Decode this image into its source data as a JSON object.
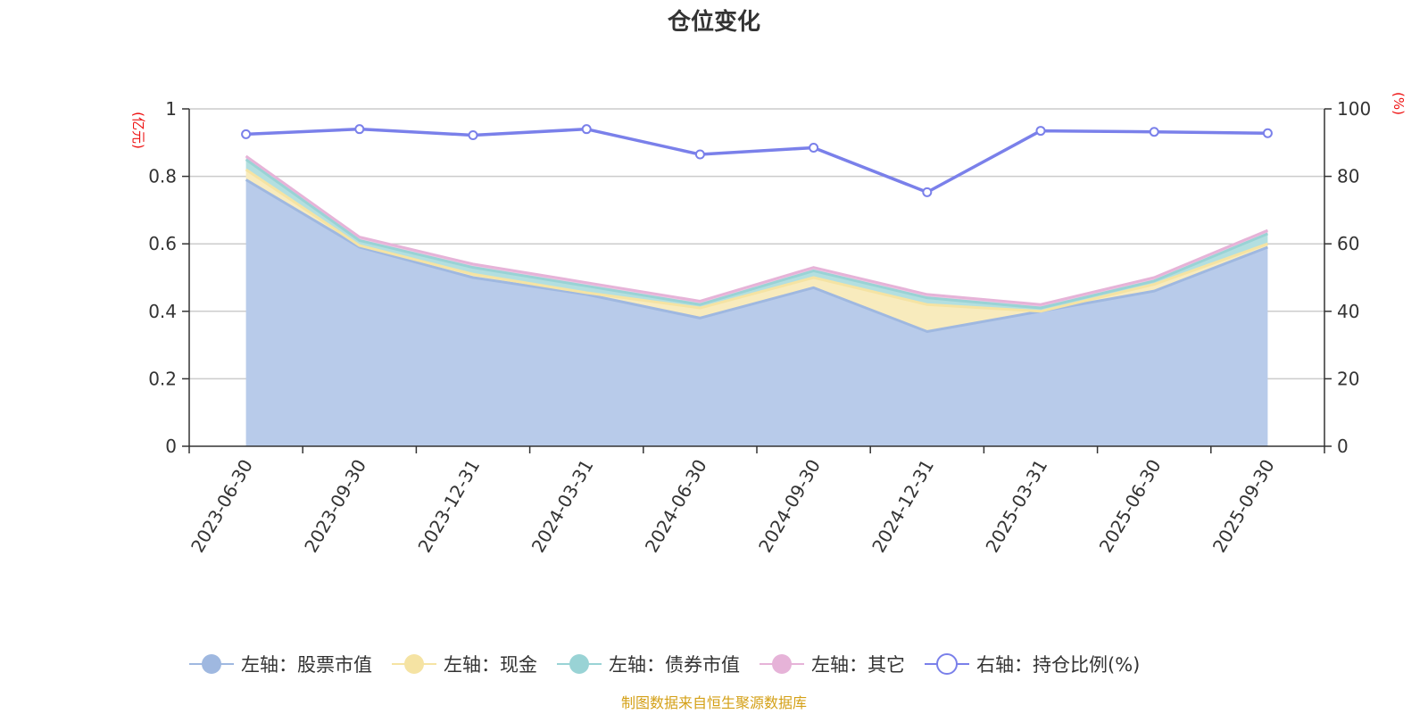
{
  "chart_data": {
    "type": "area",
    "title": "仓位变化",
    "categories": [
      "2023-06-30",
      "2023-09-30",
      "2023-12-31",
      "2024-03-31",
      "2024-06-30",
      "2024-09-30",
      "2024-12-31",
      "2025-03-31",
      "2025-06-30",
      "2025-09-30"
    ],
    "y_left": {
      "unit": "(亿元)",
      "range": [
        0,
        1
      ],
      "ticks": [
        "0",
        "0.2",
        "0.4",
        "0.6",
        "0.8",
        "1"
      ],
      "tick_values": [
        0,
        0.2,
        0.4,
        0.6,
        0.8,
        1
      ]
    },
    "y_right": {
      "unit": "(%)",
      "range": [
        0,
        100
      ],
      "ticks": [
        "0",
        "20",
        "40",
        "60",
        "80",
        "100"
      ],
      "tick_values": [
        0,
        20,
        40,
        60,
        80,
        100
      ]
    },
    "stacked_series": [
      {
        "name": "左轴：股票市值",
        "color": "#9fb8e0",
        "fill": "#b8cbea",
        "values": [
          0.79,
          0.59,
          0.5,
          0.45,
          0.38,
          0.47,
          0.34,
          0.4,
          0.46,
          0.59
        ]
      },
      {
        "name": "左轴：现金",
        "color": "#f5e3a3",
        "fill": "#f8ebbd",
        "values": [
          0.03,
          0.005,
          0.01,
          0.005,
          0.03,
          0.03,
          0.08,
          0.0,
          0.02,
          0.01
        ]
      },
      {
        "name": "左轴：债券市值",
        "color": "#99d3d5",
        "fill": "#b3dfe0",
        "values": [
          0.03,
          0.015,
          0.02,
          0.02,
          0.01,
          0.02,
          0.02,
          0.01,
          0.01,
          0.03
        ]
      },
      {
        "name": "左轴：其它",
        "color": "#e6b3d8",
        "fill": "#efc9e4",
        "values": [
          0.01,
          0.01,
          0.01,
          0.01,
          0.01,
          0.01,
          0.01,
          0.01,
          0.01,
          0.01
        ]
      }
    ],
    "line_series": {
      "name": "右轴：持仓比例(%)",
      "color": "#7a80ea",
      "values": [
        92.5,
        94.0,
        92.2,
        94.0,
        86.5,
        88.5,
        75.3,
        93.5,
        93.2,
        92.8
      ]
    },
    "grid": true,
    "legend_position": "bottom"
  },
  "source": {
    "text": "制图数据来自恒生聚源数据库",
    "color": "#d4a017"
  },
  "colors": {
    "axis_unit": "#ee1111",
    "grid": "#cccccc",
    "axis": "#333333"
  }
}
